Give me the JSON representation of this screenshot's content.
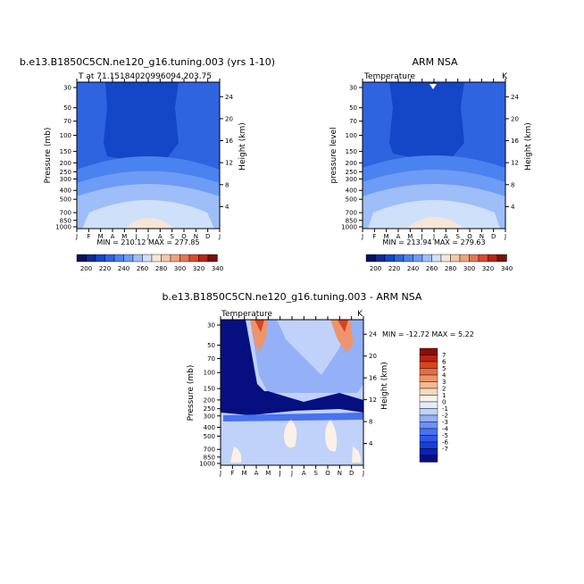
{
  "colors": {
    "temp_scale": [
      "#08105c",
      "#0a2a9a",
      "#1446c8",
      "#2f64e0",
      "#4a82f0",
      "#6c9cf5",
      "#9dbef8",
      "#cfe0fb",
      "#f6e6d8",
      "#f6c6a8",
      "#f0a07a",
      "#e87452",
      "#d84a30",
      "#b82418",
      "#7a1008"
    ],
    "diff_scale": [
      "#050f80",
      "#0a22b8",
      "#1a3fd8",
      "#2f58e8",
      "#4872f0",
      "#6c90f4",
      "#94b0f6",
      "#c0d2fa",
      "#e3ecfc",
      "#fbf1e6",
      "#f6d8c0",
      "#f2b894",
      "#ee946a",
      "#e66c44",
      "#d84420",
      "#bb2214",
      "#8c0c06"
    ]
  },
  "chart_data": [
    {
      "type": "heatmap",
      "title": "b.e13.B1850C5CN.ne120_g16.tuning.003 (yrs 1-10)",
      "subtitle_left": "T at 71.15184020996094,203.75",
      "subtitle_right": "",
      "xlabel": "",
      "ylabel": "Pressure  (mb)",
      "ylabel_right": "Height  (km)",
      "x_ticks": [
        "J",
        "F",
        "M",
        "A",
        "M",
        "J",
        "J",
        "A",
        "S",
        "O",
        "N",
        "D",
        "J"
      ],
      "y_ticks": [
        "30",
        "50",
        "70",
        "100",
        "150",
        "200",
        "250",
        "300",
        "400",
        "500",
        "700",
        "850",
        "1000"
      ],
      "y_right_ticks": [
        "24",
        "20",
        "16",
        "12",
        "8",
        "4"
      ],
      "stats": "MIN = 210.12  MAX = 277.85",
      "colorbar_labels": [
        "200",
        "220",
        "240",
        "260",
        "280",
        "300",
        "320",
        "340"
      ]
    },
    {
      "type": "heatmap",
      "title": "ARM NSA",
      "subtitle_left": "Temperature",
      "subtitle_right": "K",
      "xlabel": "",
      "ylabel": "pressure  level",
      "ylabel_right": "Height  (km)",
      "x_ticks": [
        "J",
        "F",
        "M",
        "A",
        "M",
        "J",
        "J",
        "A",
        "S",
        "O",
        "N",
        "D",
        "J"
      ],
      "y_ticks": [
        "30",
        "50",
        "70",
        "100",
        "150",
        "200",
        "250",
        "300",
        "400",
        "500",
        "700",
        "850",
        "1000"
      ],
      "y_right_ticks": [
        "24",
        "20",
        "16",
        "12",
        "8",
        "4"
      ],
      "stats": "MIN = 213.94  MAX = 279.63",
      "colorbar_labels": [
        "200",
        "220",
        "240",
        "260",
        "280",
        "300",
        "320",
        "340"
      ]
    },
    {
      "type": "heatmap",
      "title": "b.e13.B1850C5CN.ne120_g16.tuning.003 - ARM NSA",
      "subtitle_left": "Temperature",
      "subtitle_right": "K",
      "xlabel": "",
      "ylabel": "Pressure  (mb)",
      "ylabel_right": "Height  (km)",
      "x_ticks": [
        "J",
        "F",
        "M",
        "A",
        "M",
        "J",
        "J",
        "A",
        "S",
        "O",
        "N",
        "D",
        "J"
      ],
      "y_ticks": [
        "30",
        "50",
        "70",
        "100",
        "150",
        "200",
        "250",
        "300",
        "400",
        "500",
        "700",
        "850",
        "1000"
      ],
      "y_right_ticks": [
        "24",
        "20",
        "16",
        "12",
        "8",
        "4"
      ],
      "stats": "MIN = -12.72  MAX =    5.22",
      "colorbar_labels": [
        "7",
        "6",
        "5",
        "4",
        "3",
        "2",
        "1",
        "0",
        "-1",
        "-2",
        "-3",
        "-4",
        "-5",
        "-6",
        "-7"
      ]
    }
  ]
}
